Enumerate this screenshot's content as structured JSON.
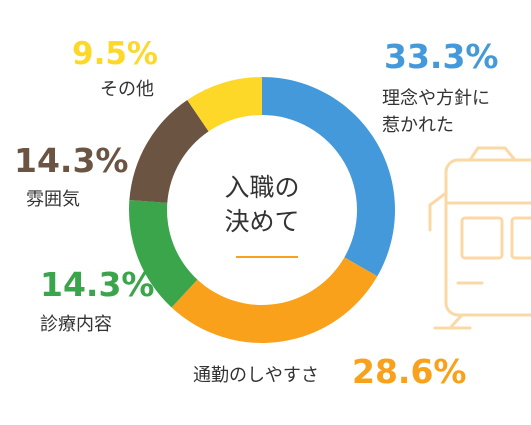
{
  "chart_data": {
    "type": "pie",
    "variant": "donut",
    "center_title_lines": [
      "入職の",
      "決めて"
    ],
    "slices": [
      {
        "label": "理念や方針に\n惹かれた",
        "value": 33.3,
        "display": "33.3%",
        "color": "#4499db"
      },
      {
        "label": "通勤のしやすさ",
        "value": 28.6,
        "display": "28.6%",
        "color": "#f9a11b"
      },
      {
        "label": "診療内容",
        "value": 14.3,
        "display": "14.3%",
        "color": "#3aa54a"
      },
      {
        "label": "雰囲気",
        "value": 14.3,
        "display": "14.3%",
        "color": "#6b5441"
      },
      {
        "label": "その他",
        "value": 9.5,
        "display": "9.5%",
        "color": "#fdd829"
      }
    ],
    "center_underline_color": "#f9a11b",
    "decoration": {
      "icon": "train-icon",
      "color": "#fbd9a6"
    }
  }
}
